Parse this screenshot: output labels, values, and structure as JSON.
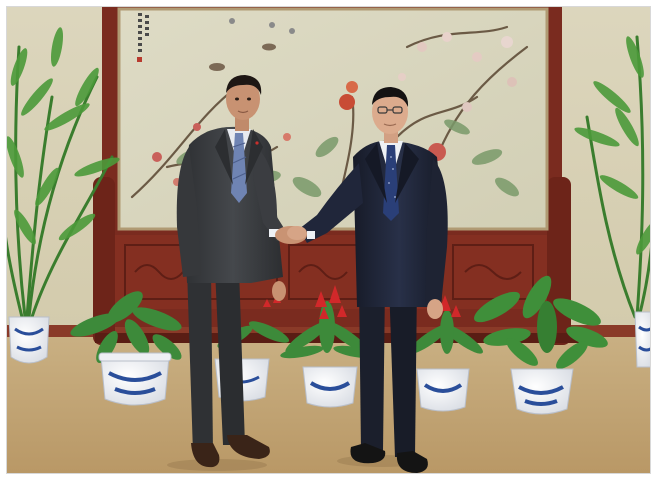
{
  "photo": {
    "seal_text": "",
    "colors": {
      "wall": "#d8d1b6",
      "floor": "#c4a878",
      "wood": "#7a2b1f",
      "painting": "#d8d5bd",
      "suit_left": "#3d3f42",
      "suit_right": "#1f2538",
      "porcelain_blue": "#2a4e9a",
      "plant_green": "#3d8a3a",
      "bloom_red": "#d2282a"
    }
  }
}
